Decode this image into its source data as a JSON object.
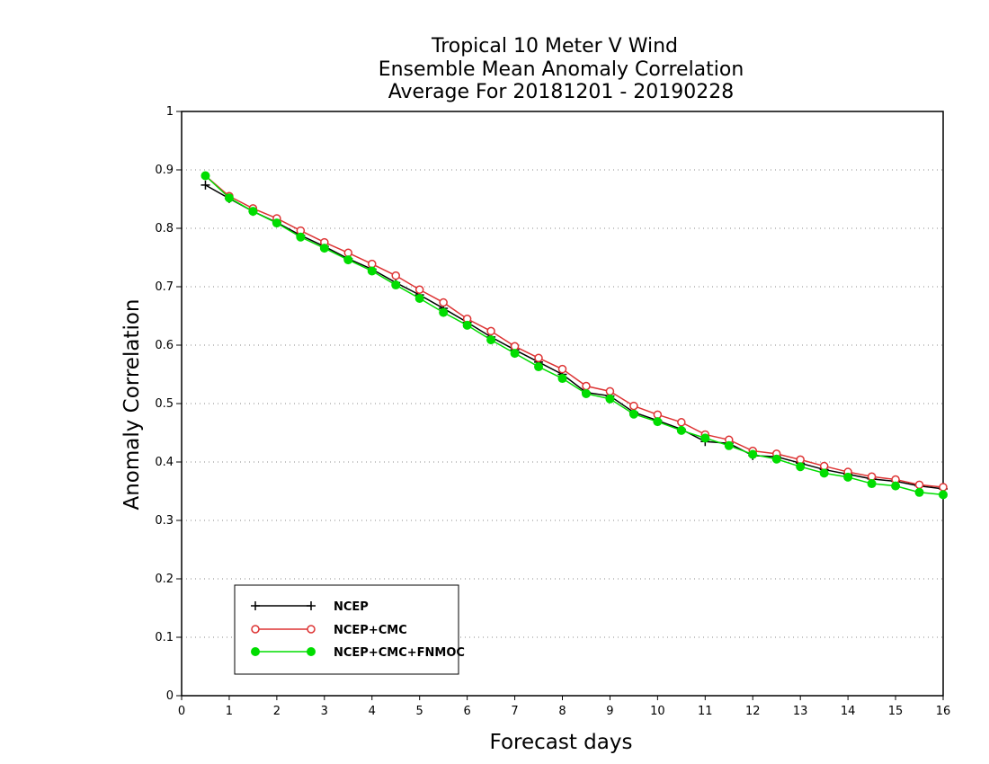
{
  "chart_data": {
    "type": "line",
    "title": [
      "Tropical 10 Meter V Wind",
      "Ensemble Mean Anomaly Correlation",
      "Average For 20181201 - 20190228"
    ],
    "xlabel": "Forecast days",
    "ylabel": "Anomaly Correlation",
    "xlim": [
      0,
      16
    ],
    "ylim": [
      0,
      1
    ],
    "xticks": [
      "0",
      "1",
      "2",
      "3",
      "4",
      "5",
      "6",
      "7",
      "8",
      "9",
      "10",
      "11",
      "12",
      "13",
      "14",
      "15",
      "16"
    ],
    "yticks": [
      "0",
      "0.1",
      "0.2",
      "0.3",
      "0.4",
      "0.5",
      "0.6",
      "0.7",
      "0.8",
      "0.9",
      "1"
    ],
    "grid": "horizontal-dotted",
    "legend_position": "bottom-left",
    "x": [
      0.5,
      1,
      1.5,
      2,
      2.5,
      3,
      3.5,
      4,
      4.5,
      5,
      5.5,
      6,
      6.5,
      7,
      7.5,
      8,
      8.5,
      9,
      9.5,
      10,
      10.5,
      11,
      11.5,
      12,
      12.5,
      13,
      13.5,
      14,
      14.5,
      15,
      15.5,
      16
    ],
    "series": [
      {
        "name": "NCEP",
        "color": "#000000",
        "marker": "plus",
        "values": [
          0.874,
          0.851,
          0.829,
          0.81,
          0.788,
          0.769,
          0.748,
          0.73,
          0.707,
          0.686,
          0.663,
          0.639,
          0.614,
          0.592,
          0.571,
          0.55,
          0.519,
          0.513,
          0.485,
          0.471,
          0.456,
          0.435,
          0.432,
          0.411,
          0.409,
          0.398,
          0.387,
          0.379,
          0.371,
          0.367,
          0.359,
          0.354
        ]
      },
      {
        "name": "NCEP+CMC",
        "color": "#dd3333",
        "marker": "open-circle",
        "values": [
          0.89,
          0.855,
          0.834,
          0.817,
          0.796,
          0.776,
          0.758,
          0.739,
          0.719,
          0.695,
          0.673,
          0.645,
          0.624,
          0.598,
          0.578,
          0.559,
          0.53,
          0.521,
          0.496,
          0.481,
          0.468,
          0.447,
          0.438,
          0.419,
          0.414,
          0.404,
          0.393,
          0.383,
          0.375,
          0.37,
          0.361,
          0.357
        ]
      },
      {
        "name": "NCEP+CMC+FNMOC",
        "color": "#00dd00",
        "marker": "filled-circle",
        "values": [
          0.89,
          0.852,
          0.829,
          0.809,
          0.785,
          0.766,
          0.746,
          0.727,
          0.703,
          0.68,
          0.656,
          0.634,
          0.609,
          0.586,
          0.563,
          0.543,
          0.517,
          0.508,
          0.482,
          0.469,
          0.454,
          0.441,
          0.428,
          0.413,
          0.405,
          0.392,
          0.381,
          0.374,
          0.363,
          0.359,
          0.348,
          0.344
        ]
      }
    ]
  }
}
